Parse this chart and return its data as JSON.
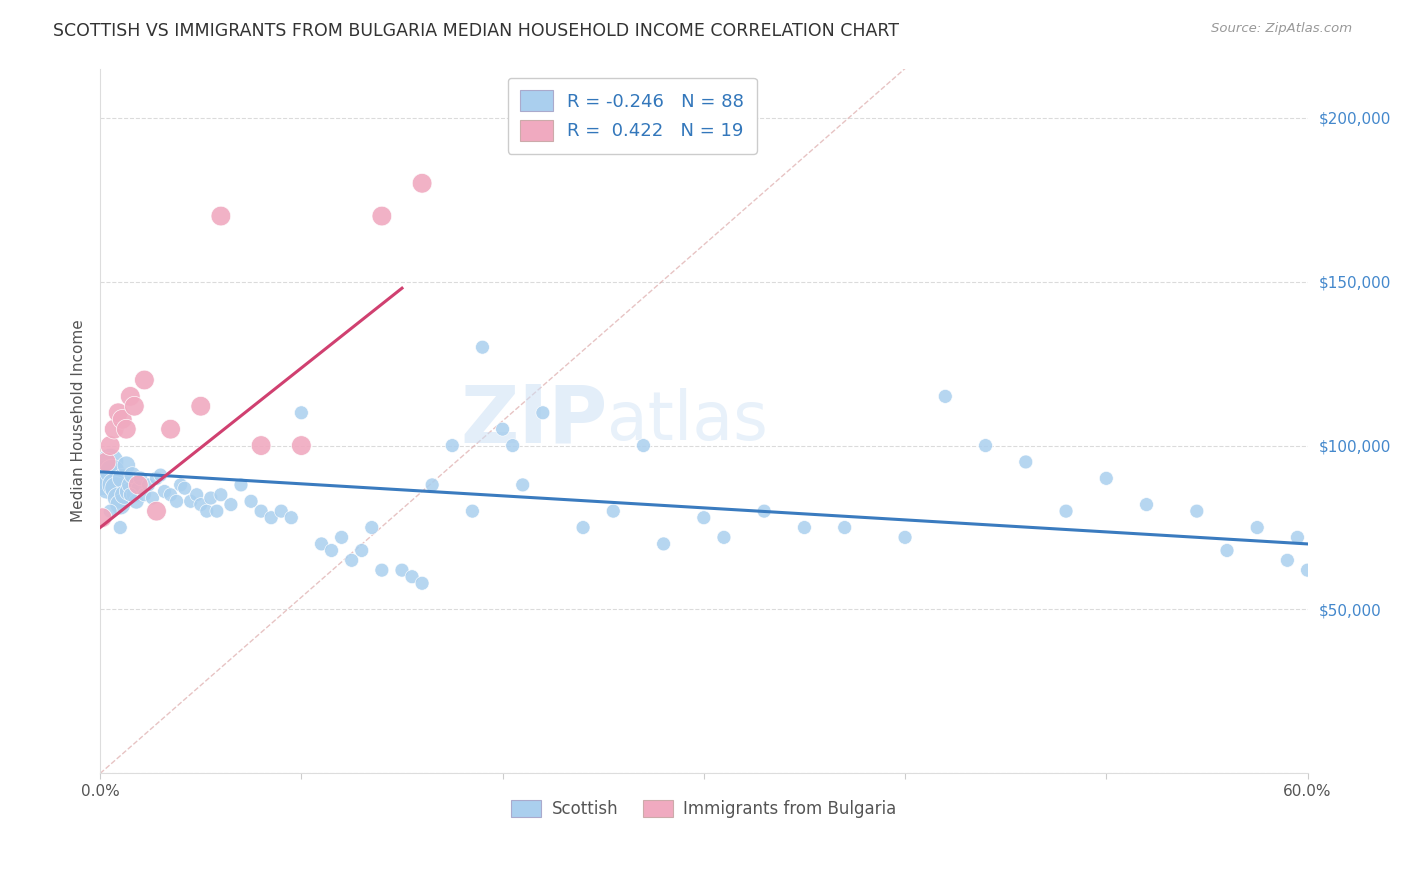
{
  "title": "SCOTTISH VS IMMIGRANTS FROM BULGARIA MEDIAN HOUSEHOLD INCOME CORRELATION CHART",
  "source": "Source: ZipAtlas.com",
  "ylabel": "Median Household Income",
  "yticks": [
    0,
    50000,
    100000,
    150000,
    200000
  ],
  "ytick_labels": [
    "",
    "$50,000",
    "$100,000",
    "$150,000",
    "$200,000"
  ],
  "xlim": [
    0.0,
    0.6
  ],
  "ylim": [
    0,
    215000
  ],
  "legend_blue_label": "Scottish",
  "legend_pink_label": "Immigrants from Bulgaria",
  "blue_color": "#aacfee",
  "pink_color": "#f0aac0",
  "blue_line_color": "#3a7bbf",
  "pink_line_color": "#d04070",
  "diagonal_color": "#e0b0b0",
  "watermark_zip": "ZIP",
  "watermark_atlas": "atlas",
  "blue_scatter": {
    "x": [
      0.001,
      0.002,
      0.003,
      0.004,
      0.005,
      0.006,
      0.007,
      0.008,
      0.009,
      0.01,
      0.011,
      0.012,
      0.013,
      0.014,
      0.015,
      0.016,
      0.017,
      0.018,
      0.019,
      0.02,
      0.022,
      0.024,
      0.026,
      0.028,
      0.03,
      0.032,
      0.035,
      0.038,
      0.04,
      0.042,
      0.045,
      0.048,
      0.05,
      0.053,
      0.055,
      0.058,
      0.06,
      0.065,
      0.07,
      0.075,
      0.08,
      0.085,
      0.09,
      0.095,
      0.1,
      0.11,
      0.115,
      0.12,
      0.125,
      0.13,
      0.135,
      0.14,
      0.15,
      0.155,
      0.16,
      0.165,
      0.175,
      0.185,
      0.19,
      0.2,
      0.205,
      0.21,
      0.22,
      0.24,
      0.255,
      0.27,
      0.28,
      0.3,
      0.31,
      0.33,
      0.35,
      0.37,
      0.4,
      0.42,
      0.44,
      0.46,
      0.48,
      0.5,
      0.52,
      0.545,
      0.56,
      0.575,
      0.59,
      0.595,
      0.6,
      0.005,
      0.01,
      0.015
    ],
    "y": [
      90000,
      93000,
      91000,
      88000,
      95000,
      92000,
      88000,
      87000,
      84000,
      82000,
      90000,
      85000,
      94000,
      86000,
      88000,
      91000,
      85000,
      83000,
      87000,
      90000,
      85000,
      88000,
      84000,
      90000,
      91000,
      86000,
      85000,
      83000,
      88000,
      87000,
      83000,
      85000,
      82000,
      80000,
      84000,
      80000,
      85000,
      82000,
      88000,
      83000,
      80000,
      78000,
      80000,
      78000,
      110000,
      70000,
      68000,
      72000,
      65000,
      68000,
      75000,
      62000,
      62000,
      60000,
      58000,
      88000,
      100000,
      80000,
      130000,
      105000,
      100000,
      88000,
      110000,
      75000,
      80000,
      100000,
      70000,
      78000,
      72000,
      80000,
      75000,
      75000,
      72000,
      115000,
      100000,
      95000,
      80000,
      90000,
      82000,
      80000,
      68000,
      75000,
      65000,
      72000,
      62000,
      80000,
      75000,
      85000
    ],
    "sizes": [
      600,
      550,
      480,
      420,
      380,
      330,
      300,
      270,
      240,
      220,
      200,
      190,
      175,
      165,
      155,
      145,
      135,
      125,
      115,
      110,
      100,
      100,
      100,
      100,
      100,
      100,
      100,
      100,
      100,
      100,
      100,
      100,
      100,
      100,
      100,
      100,
      100,
      100,
      100,
      100,
      100,
      100,
      100,
      100,
      100,
      100,
      100,
      100,
      100,
      100,
      100,
      100,
      100,
      100,
      100,
      100,
      100,
      100,
      100,
      100,
      100,
      100,
      100,
      100,
      100,
      100,
      100,
      100,
      100,
      100,
      100,
      100,
      100,
      100,
      100,
      100,
      100,
      100,
      100,
      100,
      100,
      100,
      100,
      100,
      100,
      100,
      100,
      100
    ]
  },
  "pink_scatter": {
    "x": [
      0.001,
      0.003,
      0.005,
      0.007,
      0.009,
      0.011,
      0.013,
      0.015,
      0.017,
      0.019,
      0.022,
      0.028,
      0.035,
      0.05,
      0.06,
      0.08,
      0.1,
      0.14,
      0.16
    ],
    "y": [
      78000,
      95000,
      100000,
      105000,
      110000,
      108000,
      105000,
      115000,
      112000,
      88000,
      120000,
      80000,
      105000,
      112000,
      170000,
      100000,
      100000,
      170000,
      180000
    ],
    "sizes": [
      200,
      200,
      200,
      200,
      200,
      200,
      200,
      200,
      200,
      200,
      200,
      200,
      200,
      200,
      200,
      200,
      200,
      200,
      200
    ]
  },
  "blue_line": {
    "x0": 0.0,
    "x1": 0.6,
    "y0": 92000,
    "y1": 70000
  },
  "pink_line": {
    "x0": 0.0,
    "x1": 0.15,
    "y0": 75000,
    "y1": 148000
  }
}
